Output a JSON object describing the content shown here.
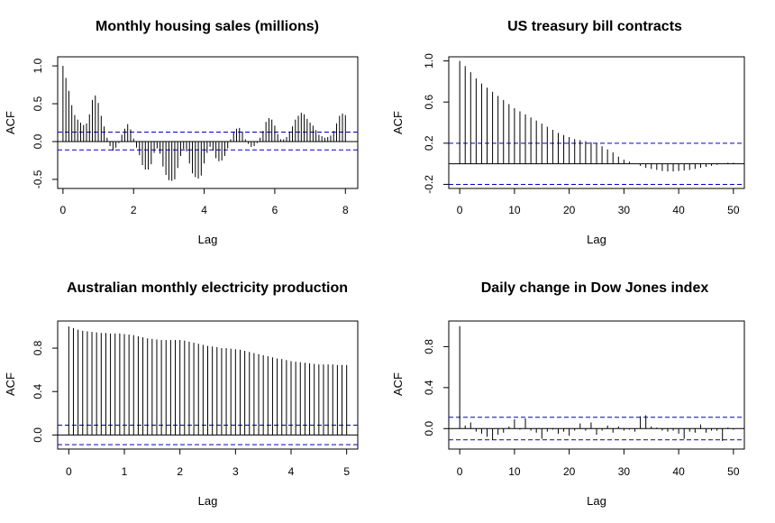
{
  "chart_data": [
    {
      "type": "bar",
      "title": "Monthly housing sales (millions)",
      "xlabel": "Lag",
      "ylabel": "ACF",
      "xlim": [
        -0.15,
        8.35
      ],
      "ylim": [
        -0.62,
        1.12
      ],
      "x_ticks": [
        0,
        2,
        4,
        6,
        8
      ],
      "x_tick_labels": [
        "0",
        "2",
        "4",
        "6",
        "8"
      ],
      "y_ticks": [
        -0.5,
        0.0,
        0.5,
        1.0
      ],
      "y_tick_labels": [
        "-0.5",
        "0.0",
        "0.5",
        "1.0"
      ],
      "ci": [
        0.125,
        -0.11
      ],
      "lag_step": 0.0833333,
      "values": [
        1.0,
        0.84,
        0.67,
        0.48,
        0.35,
        0.29,
        0.25,
        0.22,
        0.24,
        0.36,
        0.55,
        0.61,
        0.51,
        0.34,
        0.2,
        0.05,
        -0.06,
        -0.12,
        -0.08,
        -0.02,
        0.09,
        0.17,
        0.23,
        0.16,
        0.04,
        -0.08,
        -0.18,
        -0.31,
        -0.37,
        -0.37,
        -0.3,
        -0.15,
        -0.09,
        -0.16,
        -0.33,
        -0.44,
        -0.51,
        -0.52,
        -0.5,
        -0.35,
        -0.19,
        -0.1,
        -0.13,
        -0.29,
        -0.42,
        -0.47,
        -0.49,
        -0.45,
        -0.29,
        -0.15,
        -0.07,
        -0.12,
        -0.22,
        -0.26,
        -0.25,
        -0.19,
        -0.09,
        0.03,
        0.12,
        0.17,
        0.18,
        0.13,
        0.03,
        -0.03,
        -0.07,
        -0.06,
        -0.02,
        0.05,
        0.14,
        0.26,
        0.31,
        0.29,
        0.21,
        0.1,
        0.03,
        0.03,
        0.06,
        0.13,
        0.2,
        0.29,
        0.34,
        0.38,
        0.36,
        0.3,
        0.25,
        0.21,
        0.15,
        0.09,
        0.07,
        0.05,
        0.06,
        0.08,
        0.14,
        0.24,
        0.34,
        0.37,
        0.35
      ]
    },
    {
      "type": "bar",
      "title": "US treasury bill contracts",
      "xlabel": "Lag",
      "ylabel": "ACF",
      "xlim": [
        -2.0,
        52.0
      ],
      "ylim": [
        -0.24,
        1.04
      ],
      "x_ticks": [
        0,
        10,
        20,
        30,
        40,
        50
      ],
      "x_tick_labels": [
        "0",
        "10",
        "20",
        "30",
        "40",
        "50"
      ],
      "y_ticks": [
        -0.2,
        0.2,
        0.6,
        1.0
      ],
      "y_tick_labels": [
        "-0.2",
        "0.2",
        "0.6",
        "1.0"
      ],
      "ci": [
        0.2,
        -0.2
      ],
      "lag_step": 1,
      "values": [
        1.0,
        0.95,
        0.89,
        0.83,
        0.78,
        0.74,
        0.7,
        0.66,
        0.62,
        0.58,
        0.54,
        0.51,
        0.48,
        0.45,
        0.42,
        0.39,
        0.36,
        0.33,
        0.3,
        0.28,
        0.26,
        0.24,
        0.23,
        0.22,
        0.21,
        0.2,
        0.17,
        0.14,
        0.11,
        0.07,
        0.04,
        0.02,
        0.0,
        -0.02,
        -0.04,
        -0.05,
        -0.06,
        -0.07,
        -0.075,
        -0.075,
        -0.07,
        -0.065,
        -0.06,
        -0.05,
        -0.04,
        -0.03,
        -0.02,
        -0.01,
        0.0,
        0.01,
        0.01
      ]
    },
    {
      "type": "bar",
      "title": "Australian monthly electricity production",
      "xlabel": "Lag",
      "ylabel": "ACF",
      "xlim": [
        -0.2,
        5.2
      ],
      "ylim": [
        -0.13,
        1.05
      ],
      "x_ticks": [
        0,
        1,
        2,
        3,
        4,
        5
      ],
      "x_tick_labels": [
        "0",
        "1",
        "2",
        "3",
        "4",
        "5"
      ],
      "y_ticks": [
        0.0,
        0.4,
        0.8
      ],
      "y_tick_labels": [
        "0.0",
        "0.4",
        "0.8"
      ],
      "ci": [
        0.09,
        -0.09
      ],
      "lag_step": 0.0833333,
      "values": [
        1.0,
        0.985,
        0.97,
        0.96,
        0.955,
        0.95,
        0.945,
        0.94,
        0.94,
        0.935,
        0.935,
        0.935,
        0.93,
        0.925,
        0.92,
        0.91,
        0.9,
        0.89,
        0.885,
        0.88,
        0.875,
        0.875,
        0.875,
        0.875,
        0.875,
        0.87,
        0.86,
        0.85,
        0.84,
        0.83,
        0.82,
        0.815,
        0.81,
        0.8,
        0.8,
        0.795,
        0.79,
        0.785,
        0.775,
        0.765,
        0.755,
        0.745,
        0.735,
        0.725,
        0.715,
        0.705,
        0.7,
        0.69,
        0.68,
        0.675,
        0.67,
        0.665,
        0.66,
        0.655,
        0.65,
        0.65,
        0.65,
        0.65,
        0.645,
        0.645,
        0.645
      ]
    },
    {
      "type": "bar",
      "title": "Daily change in Dow Jones index",
      "xlabel": "Lag",
      "ylabel": "ACF",
      "xlim": [
        -2.0,
        52.0
      ],
      "ylim": [
        -0.2,
        1.05
      ],
      "x_ticks": [
        0,
        10,
        20,
        30,
        40,
        50
      ],
      "x_tick_labels": [
        "0",
        "10",
        "20",
        "30",
        "40",
        "50"
      ],
      "y_ticks": [
        0.0,
        0.4,
        0.8
      ],
      "y_tick_labels": [
        "0.0",
        "0.4",
        "0.8"
      ],
      "ci": [
        0.11,
        -0.11
      ],
      "lag_step": 1,
      "values": [
        1.0,
        0.03,
        0.06,
        -0.03,
        -0.05,
        -0.08,
        -0.11,
        -0.06,
        -0.04,
        0.02,
        0.09,
        -0.01,
        0.1,
        -0.02,
        -0.04,
        -0.1,
        -0.03,
        -0.01,
        -0.05,
        -0.03,
        -0.07,
        -0.02,
        0.05,
        -0.02,
        0.06,
        -0.06,
        -0.02,
        0.03,
        -0.04,
        0.02,
        -0.02,
        -0.01,
        -0.03,
        0.12,
        0.13,
        0.02,
        0.01,
        -0.02,
        -0.03,
        -0.02,
        -0.05,
        -0.1,
        -0.03,
        -0.04,
        0.04,
        -0.04,
        -0.02,
        -0.02,
        -0.12,
        0.01,
        -0.01
      ]
    }
  ]
}
